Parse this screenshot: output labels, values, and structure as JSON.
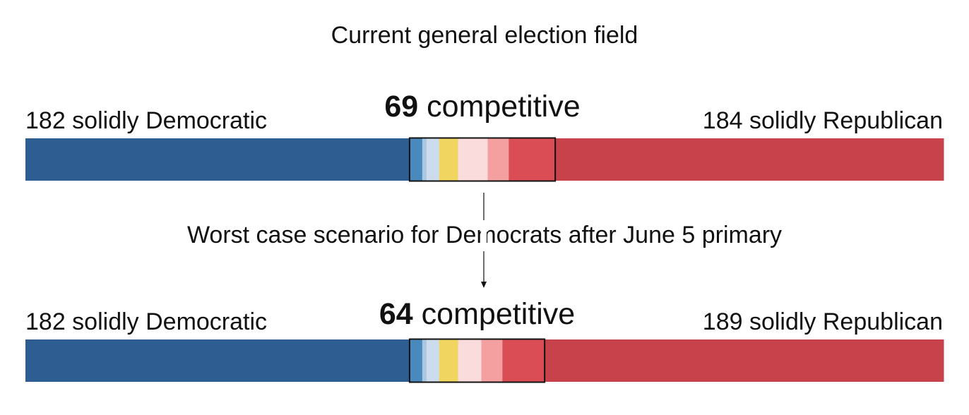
{
  "title": "Current general election field",
  "middle_label": "Worst case scenario for Democrats after June 5 primary",
  "colors": {
    "solid_dem": "#2e5d92",
    "likely_dem": "#4a89be",
    "lean_dem": "#a9c6e2",
    "tilt_dem": "#cddcec",
    "tossup": "#f0d560",
    "tilt_rep": "#fbdcdc",
    "lean_rep": "#f4a0a0",
    "likely_rep": "#db4d55",
    "solid_rep": "#c8424c",
    "frame": "#111111"
  },
  "chart_data": [
    {
      "type": "bar",
      "orientation": "horizontal-stacked",
      "scenario": "Current general election field",
      "solid_dem": {
        "count": 182,
        "label": "182 solidly Democratic"
      },
      "competitive": {
        "count": 69,
        "number": "69",
        "label": " competitive"
      },
      "solid_rep": {
        "count": 184,
        "label": "184 solidly Republican"
      },
      "segments": [
        {
          "key": "solid_dem",
          "value": 182
        },
        {
          "key": "likely_dem",
          "value": 6
        },
        {
          "key": "lean_dem",
          "value": 2
        },
        {
          "key": "tilt_dem",
          "value": 6
        },
        {
          "key": "tossup",
          "value": 9
        },
        {
          "key": "tilt_rep",
          "value": 14
        },
        {
          "key": "lean_rep",
          "value": 10
        },
        {
          "key": "likely_rep",
          "value": 22
        },
        {
          "key": "solid_rep",
          "value": 184
        }
      ]
    },
    {
      "type": "bar",
      "orientation": "horizontal-stacked",
      "scenario": "Worst case scenario for Democrats after June 5 primary",
      "solid_dem": {
        "count": 182,
        "label": "182 solidly Democratic"
      },
      "competitive": {
        "count": 64,
        "number": "64",
        "label": " competitive"
      },
      "solid_rep": {
        "count": 189,
        "label": "189 solidly Republican"
      },
      "segments": [
        {
          "key": "solid_dem",
          "value": 182
        },
        {
          "key": "likely_dem",
          "value": 6
        },
        {
          "key": "lean_dem",
          "value": 2
        },
        {
          "key": "tilt_dem",
          "value": 6
        },
        {
          "key": "tossup",
          "value": 9
        },
        {
          "key": "tilt_rep",
          "value": 11
        },
        {
          "key": "lean_rep",
          "value": 10
        },
        {
          "key": "likely_rep",
          "value": 20
        },
        {
          "key": "solid_rep",
          "value": 189
        }
      ]
    }
  ]
}
